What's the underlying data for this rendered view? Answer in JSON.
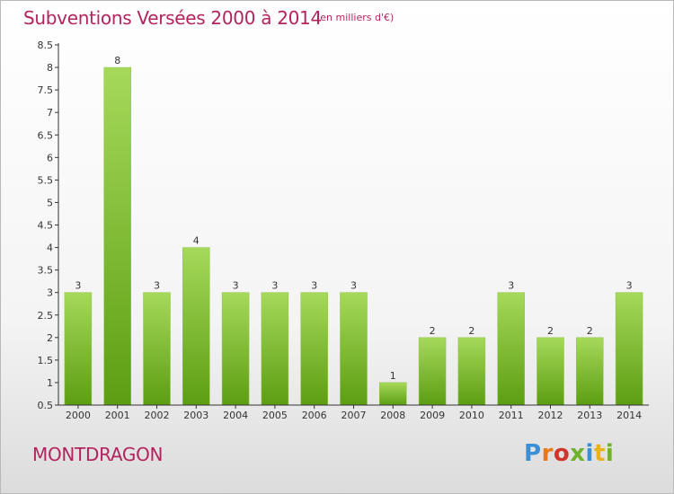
{
  "header": {
    "title": "Subventions Versées 2000 à 2014",
    "subtitle": "(en milliers d'€)"
  },
  "footer": {
    "city": "MONTDRAGON",
    "logo_text": "Proxiti"
  },
  "colors": {
    "title": "#b3245f",
    "bar_light": "#a6d95a",
    "bar_dark": "#5c9e12",
    "axis": "#333333"
  },
  "chart_data": {
    "type": "bar",
    "title": "Subventions Versées 2000 à 2014",
    "subtitle": "(en milliers d'€)",
    "xlabel": "",
    "ylabel": "",
    "categories": [
      "2000",
      "2001",
      "2002",
      "2003",
      "2004",
      "2005",
      "2006",
      "2007",
      "2008",
      "2009",
      "2010",
      "2011",
      "2012",
      "2013",
      "2014"
    ],
    "values": [
      3,
      8,
      3,
      4,
      3,
      3,
      3,
      3,
      1,
      2,
      2,
      3,
      2,
      2,
      3
    ],
    "data_labels": [
      "3",
      "8",
      "3",
      "4",
      "3",
      "3",
      "3",
      "3",
      "1",
      "2",
      "2",
      "3",
      "2",
      "2",
      "3"
    ],
    "ylim": [
      0.5,
      8.5
    ],
    "yticks": [
      "0.5",
      "1",
      "1.5",
      "2",
      "2.5",
      "3",
      "3.5",
      "4",
      "4.5",
      "5",
      "5.5",
      "6",
      "6.5",
      "7",
      "7.5",
      "8",
      "8.5"
    ],
    "ytick_values": [
      0.5,
      1,
      1.5,
      2,
      2.5,
      3,
      3.5,
      4,
      4.5,
      5,
      5.5,
      6,
      6.5,
      7,
      7.5,
      8,
      8.5
    ],
    "grid": false,
    "legend": "none"
  }
}
